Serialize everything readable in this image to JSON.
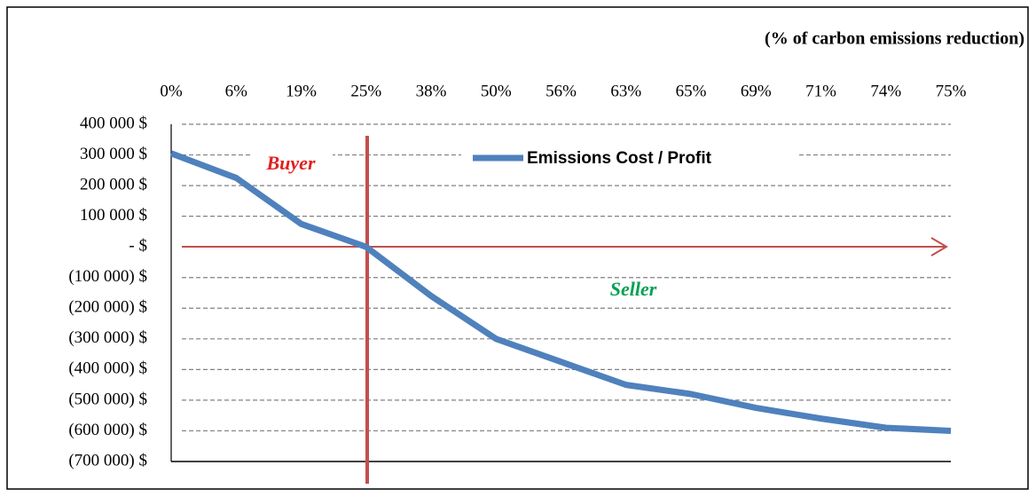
{
  "chart_data": {
    "type": "line",
    "x_axis_title": "(% of carbon emissions reduction)",
    "categories": [
      "0%",
      "6%",
      "19%",
      "25%",
      "38%",
      "50%",
      "56%",
      "63%",
      "65%",
      "69%",
      "71%",
      "74%",
      "75%"
    ],
    "series": [
      {
        "name": "Emissions Cost / Profit",
        "color": "#4f81bd",
        "values": [
          305000,
          225000,
          75000,
          0,
          -160000,
          -300000,
          -375000,
          -450000,
          -480000,
          -525000,
          -560000,
          -590000,
          -600000
        ]
      }
    ],
    "ylim": [
      -700000,
      400000
    ],
    "yticks": [
      {
        "value": -700000,
        "label": "(700 000) $"
      },
      {
        "value": -600000,
        "label": "(600 000) $"
      },
      {
        "value": -500000,
        "label": "(500 000) $"
      },
      {
        "value": -400000,
        "label": "(400 000) $"
      },
      {
        "value": -300000,
        "label": "(300 000) $"
      },
      {
        "value": -200000,
        "label": "(200 000) $"
      },
      {
        "value": -100000,
        "label": "(100 000) $"
      },
      {
        "value": 0,
        "label": "-   $"
      },
      {
        "value": 100000,
        "label": "100 000  $"
      },
      {
        "value": 200000,
        "label": "200 000  $"
      },
      {
        "value": 300000,
        "label": "300 000  $"
      },
      {
        "value": 400000,
        "label": "400 000  $"
      }
    ],
    "grid": true,
    "annotations": [
      "Buyer",
      "Seller"
    ]
  }
}
